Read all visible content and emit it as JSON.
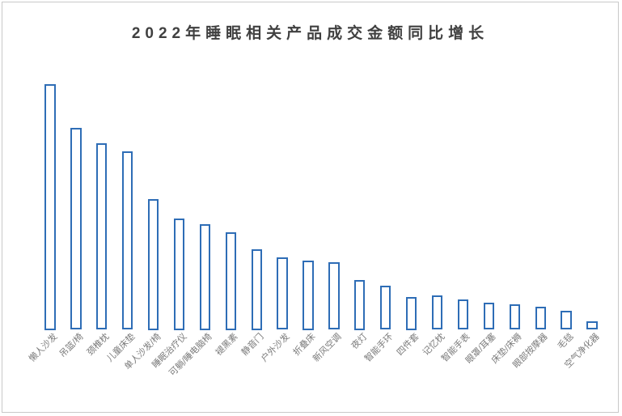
{
  "chart_data": {
    "type": "bar",
    "title": "2022年睡眠相关产品成交金额同比增长",
    "categories": [
      "懒人沙发",
      "吊篮/椅",
      "颈椎枕",
      "儿童床垫",
      "单人沙发/椅",
      "睡眠治疗仪",
      "可躺/睡电脑椅",
      "褪黑素",
      "静音门",
      "户外沙发",
      "折叠床",
      "新风空调",
      "夜灯",
      "智能手环",
      "四件套",
      "记忆枕",
      "智能手表",
      "眼罩/耳塞",
      "床垫/床褥",
      "眼部按摩器",
      "毛毯",
      "空气净化器"
    ],
    "values": [
      100,
      82.2,
      75.7,
      72.4,
      53.3,
      45.4,
      43.1,
      39.8,
      32.9,
      29.3,
      28.3,
      27.6,
      20.4,
      17.8,
      13.5,
      14.0,
      12.2,
      10.9,
      10.5,
      9.5,
      7.6,
      3.6
    ],
    "values_note": "relative heights, tallest bar = 100 (no value axis, gridlines or data labels shown in chart)",
    "xlabel": "",
    "ylabel": "",
    "legend": "none",
    "grid": false,
    "axis_lines": "none",
    "bar_style": "hollow-outline",
    "xtick_rotation_deg": 45
  },
  "colors": {
    "bar_outline": "#2E6DB6",
    "bar_fill": "#FFFFFF",
    "title_text": "#404040",
    "axis_label_text": "#7A7A7A",
    "frame_border": "#C9C9C9",
    "background": "#FFFFFF"
  }
}
